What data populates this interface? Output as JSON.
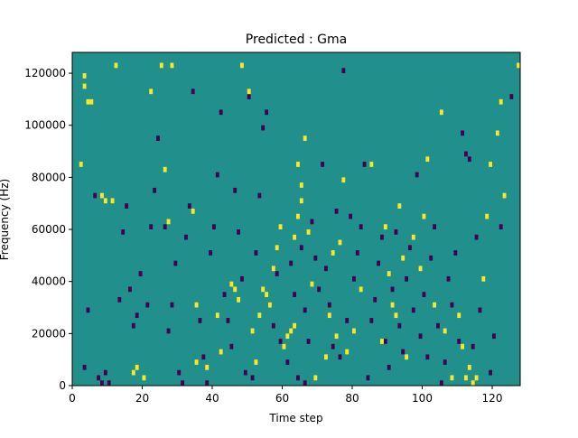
{
  "chart_data": {
    "type": "heatmap",
    "title": "Predicted : Gma",
    "xlabel": "Time step",
    "ylabel": "Frequency (Hz)",
    "xlim": [
      0,
      128
    ],
    "ylim": [
      0,
      128000
    ],
    "x_ticks": [
      0,
      20,
      40,
      60,
      80,
      100,
      120
    ],
    "x_tick_labels": [
      "0",
      "20",
      "40",
      "60",
      "80",
      "100",
      "120"
    ],
    "y_ticks": [
      0,
      20000,
      40000,
      60000,
      80000,
      100000,
      120000
    ],
    "y_tick_labels": [
      "0",
      "20000",
      "40000",
      "60000",
      "80000",
      "100000",
      "120000"
    ],
    "colormap": "viridis",
    "background_value": "mid",
    "colors": {
      "background": "#21908d",
      "low": "#440154",
      "high": "#fde725"
    },
    "grid": false,
    "cell_height_hz": 2000,
    "yellow_cells": [
      [
        2,
        84000
      ],
      [
        3,
        118000
      ],
      [
        3,
        114000
      ],
      [
        4,
        108000
      ],
      [
        5,
        108000
      ],
      [
        8,
        72000
      ],
      [
        9,
        70000
      ],
      [
        11,
        70000
      ],
      [
        12,
        122000
      ],
      [
        17,
        4000
      ],
      [
        18,
        6000
      ],
      [
        20,
        2000
      ],
      [
        22,
        112000
      ],
      [
        25,
        122000
      ],
      [
        26,
        82000
      ],
      [
        27,
        62000
      ],
      [
        28,
        122000
      ],
      [
        34,
        66000
      ],
      [
        35,
        8000
      ],
      [
        35,
        30000
      ],
      [
        38,
        6000
      ],
      [
        41,
        26000
      ],
      [
        42,
        12000
      ],
      [
        45,
        38000
      ],
      [
        46,
        36000
      ],
      [
        47,
        32000
      ],
      [
        48,
        122000
      ],
      [
        50,
        112000
      ],
      [
        51,
        20000
      ],
      [
        52,
        8000
      ],
      [
        53,
        26000
      ],
      [
        54,
        36000
      ],
      [
        55,
        34000
      ],
      [
        56,
        30000
      ],
      [
        57,
        44000
      ],
      [
        58,
        52000
      ],
      [
        59,
        60000
      ],
      [
        60,
        14000
      ],
      [
        61,
        18000
      ],
      [
        62,
        20000
      ],
      [
        63,
        22000
      ],
      [
        63,
        56000
      ],
      [
        64,
        64000
      ],
      [
        64,
        84000
      ],
      [
        65,
        70000
      ],
      [
        65,
        76000
      ],
      [
        66,
        94000
      ],
      [
        67,
        58000
      ],
      [
        68,
        38000
      ],
      [
        69,
        2000
      ],
      [
        72,
        10000
      ],
      [
        73,
        26000
      ],
      [
        74,
        50000
      ],
      [
        75,
        18000
      ],
      [
        76,
        54000
      ],
      [
        77,
        78000
      ],
      [
        78,
        12000
      ],
      [
        80,
        20000
      ],
      [
        82,
        36000
      ],
      [
        85,
        84000
      ],
      [
        88,
        16000
      ],
      [
        89,
        60000
      ],
      [
        90,
        42000
      ],
      [
        91,
        30000
      ],
      [
        92,
        26000
      ],
      [
        93,
        68000
      ],
      [
        94,
        48000
      ],
      [
        95,
        10000
      ],
      [
        97,
        56000
      ],
      [
        99,
        44000
      ],
      [
        100,
        64000
      ],
      [
        101,
        86000
      ],
      [
        103,
        30000
      ],
      [
        105,
        104000
      ],
      [
        106,
        20000
      ],
      [
        108,
        2000
      ],
      [
        110,
        26000
      ],
      [
        111,
        14000
      ],
      [
        112,
        2000
      ],
      [
        113,
        6000
      ],
      [
        114,
        0
      ],
      [
        115,
        2000
      ],
      [
        117,
        40000
      ],
      [
        118,
        64000
      ],
      [
        119,
        84000
      ],
      [
        121,
        96000
      ],
      [
        122,
        108000
      ],
      [
        123,
        72000
      ],
      [
        127,
        122000
      ]
    ],
    "purple_cells": [
      [
        3,
        6000
      ],
      [
        4,
        28000
      ],
      [
        6,
        72000
      ],
      [
        7,
        2000
      ],
      [
        8,
        0
      ],
      [
        9,
        4000
      ],
      [
        10,
        0
      ],
      [
        13,
        32000
      ],
      [
        14,
        58000
      ],
      [
        15,
        68000
      ],
      [
        16,
        36000
      ],
      [
        17,
        22000
      ],
      [
        18,
        26000
      ],
      [
        19,
        42000
      ],
      [
        21,
        30000
      ],
      [
        22,
        60000
      ],
      [
        23,
        74000
      ],
      [
        24,
        94000
      ],
      [
        26,
        60000
      ],
      [
        27,
        20000
      ],
      [
        28,
        30000
      ],
      [
        29,
        46000
      ],
      [
        30,
        4000
      ],
      [
        31,
        0
      ],
      [
        32,
        56000
      ],
      [
        33,
        68000
      ],
      [
        34,
        112000
      ],
      [
        36,
        24000
      ],
      [
        37,
        10000
      ],
      [
        38,
        0
      ],
      [
        39,
        50000
      ],
      [
        40,
        60000
      ],
      [
        41,
        80000
      ],
      [
        42,
        104000
      ],
      [
        43,
        34000
      ],
      [
        44,
        24000
      ],
      [
        45,
        14000
      ],
      [
        46,
        74000
      ],
      [
        47,
        58000
      ],
      [
        48,
        40000
      ],
      [
        49,
        4000
      ],
      [
        50,
        110000
      ],
      [
        51,
        2000
      ],
      [
        52,
        50000
      ],
      [
        53,
        72000
      ],
      [
        54,
        98000
      ],
      [
        55,
        104000
      ],
      [
        56,
        30000
      ],
      [
        57,
        22000
      ],
      [
        58,
        42000
      ],
      [
        59,
        16000
      ],
      [
        61,
        8000
      ],
      [
        62,
        46000
      ],
      [
        63,
        34000
      ],
      [
        64,
        2000
      ],
      [
        65,
        52000
      ],
      [
        66,
        28000
      ],
      [
        66,
        0
      ],
      [
        67,
        16000
      ],
      [
        68,
        62000
      ],
      [
        69,
        48000
      ],
      [
        70,
        36000
      ],
      [
        71,
        84000
      ],
      [
        72,
        44000
      ],
      [
        73,
        30000
      ],
      [
        74,
        14000
      ],
      [
        75,
        66000
      ],
      [
        76,
        10000
      ],
      [
        77,
        120000
      ],
      [
        78,
        24000
      ],
      [
        79,
        64000
      ],
      [
        80,
        40000
      ],
      [
        81,
        50000
      ],
      [
        82,
        60000
      ],
      [
        83,
        84000
      ],
      [
        84,
        2000
      ],
      [
        85,
        24000
      ],
      [
        86,
        32000
      ],
      [
        87,
        46000
      ],
      [
        88,
        56000
      ],
      [
        89,
        16000
      ],
      [
        90,
        6000
      ],
      [
        91,
        36000
      ],
      [
        92,
        58000
      ],
      [
        93,
        22000
      ],
      [
        94,
        12000
      ],
      [
        95,
        40000
      ],
      [
        96,
        52000
      ],
      [
        97,
        28000
      ],
      [
        98,
        80000
      ],
      [
        99,
        18000
      ],
      [
        100,
        34000
      ],
      [
        101,
        10000
      ],
      [
        102,
        48000
      ],
      [
        103,
        60000
      ],
      [
        104,
        22000
      ],
      [
        105,
        0
      ],
      [
        106,
        8000
      ],
      [
        107,
        40000
      ],
      [
        108,
        30000
      ],
      [
        109,
        50000
      ],
      [
        110,
        16000
      ],
      [
        111,
        96000
      ],
      [
        112,
        88000
      ],
      [
        113,
        86000
      ],
      [
        114,
        14000
      ],
      [
        115,
        56000
      ],
      [
        116,
        28000
      ],
      [
        119,
        4000
      ],
      [
        120,
        18000
      ],
      [
        122,
        60000
      ],
      [
        125,
        110000
      ]
    ]
  }
}
